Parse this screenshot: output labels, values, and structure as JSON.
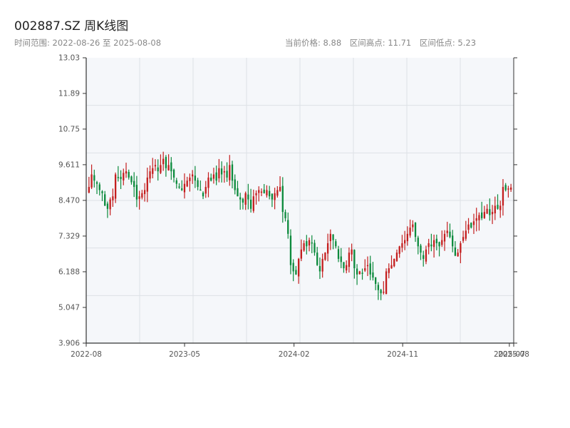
{
  "header": {
    "title": "002887.SZ 周K线图",
    "subtitle": "时间范围: 2022-08-26 至 2025-08-08",
    "stats": {
      "current": "当前价格: 8.88",
      "high": "区间高点: 11.71",
      "low": "区间低点: 5.23"
    }
  },
  "colors": {
    "up": "#c41e1e",
    "down": "#0c8a3c",
    "plot_bg": "#f5f7fa",
    "grid": "#dde1e6",
    "axis": "#333333"
  },
  "chart_data": {
    "type": "candlestick",
    "title": "002887.SZ 周K线图",
    "x_range": [
      "2022-08-26",
      "2025-08-08"
    ],
    "y_range": [
      3.906,
      13.03
    ],
    "y_ticks": [
      "3.906",
      "5.047",
      "6.188",
      "7.329",
      "8.470",
      "9.611",
      "10.75",
      "11.89",
      "13.03"
    ],
    "x_ticks": [
      {
        "label": "2022-08",
        "date": "2022-08-26"
      },
      {
        "label": "2023-05",
        "date": "2023-05-01"
      },
      {
        "label": "2024-02",
        "date": "2024-02-01"
      },
      {
        "label": "2024-11",
        "date": "2024-11-01"
      },
      {
        "label": "2025-07",
        "date": "2025-07-28"
      },
      {
        "label": "2025-08",
        "date": "2025-08-08"
      }
    ],
    "grid": true,
    "range_high": 11.71,
    "range_low": 5.23,
    "last_close": 8.88,
    "weekly_closes": [
      8.9,
      9.3,
      9.1,
      9.0,
      8.8,
      8.7,
      8.3,
      8.2,
      8.5,
      8.6,
      9.3,
      9.2,
      9.15,
      9.35,
      9.4,
      9.2,
      9.05,
      8.9,
      8.5,
      8.6,
      8.7,
      8.8,
      9.2,
      9.4,
      9.5,
      9.6,
      9.4,
      9.6,
      9.8,
      9.5,
      9.6,
      9.4,
      9.2,
      9.0,
      8.9,
      8.8,
      9.0,
      9.1,
      9.2,
      9.3,
      9.1,
      8.9,
      8.8,
      8.6,
      8.9,
      9.2,
      9.1,
      9.3,
      9.1,
      9.5,
      9.3,
      9.4,
      9.2,
      9.6,
      9.1,
      8.8,
      8.6,
      8.5,
      8.4,
      8.7,
      8.5,
      8.2,
      8.6,
      8.7,
      8.8,
      8.75,
      8.7,
      8.8,
      8.6,
      8.5,
      8.7,
      8.8,
      8.9,
      8.1,
      7.9,
      7.4,
      6.4,
      6.2,
      6.1,
      6.6,
      6.9,
      7.1,
      7.0,
      7.2,
      7.1,
      6.8,
      6.4,
      6.2,
      6.6,
      6.8,
      7.1,
      7.4,
      7.2,
      7.0,
      6.6,
      6.5,
      6.3,
      6.4,
      6.8,
      6.9,
      6.3,
      6.1,
      6.2,
      6.15,
      6.3,
      6.4,
      6.1,
      6.0,
      5.8,
      5.6,
      5.5,
      5.55,
      6.2,
      6.3,
      6.4,
      6.6,
      6.8,
      7.0,
      7.1,
      7.2,
      7.4,
      7.6,
      7.7,
      7.3,
      7.0,
      6.8,
      6.6,
      6.9,
      7.1,
      7.0,
      7.2,
      7.1,
      7.0,
      7.2,
      7.4,
      7.5,
      7.3,
      7.0,
      6.7,
      6.8,
      7.1,
      7.3,
      7.5,
      7.7,
      7.6,
      7.8,
      7.9,
      8.0,
      7.9,
      8.1,
      8.2,
      8.0,
      8.1,
      8.3,
      8.2,
      8.3,
      8.9,
      8.8,
      8.85,
      8.88
    ]
  }
}
